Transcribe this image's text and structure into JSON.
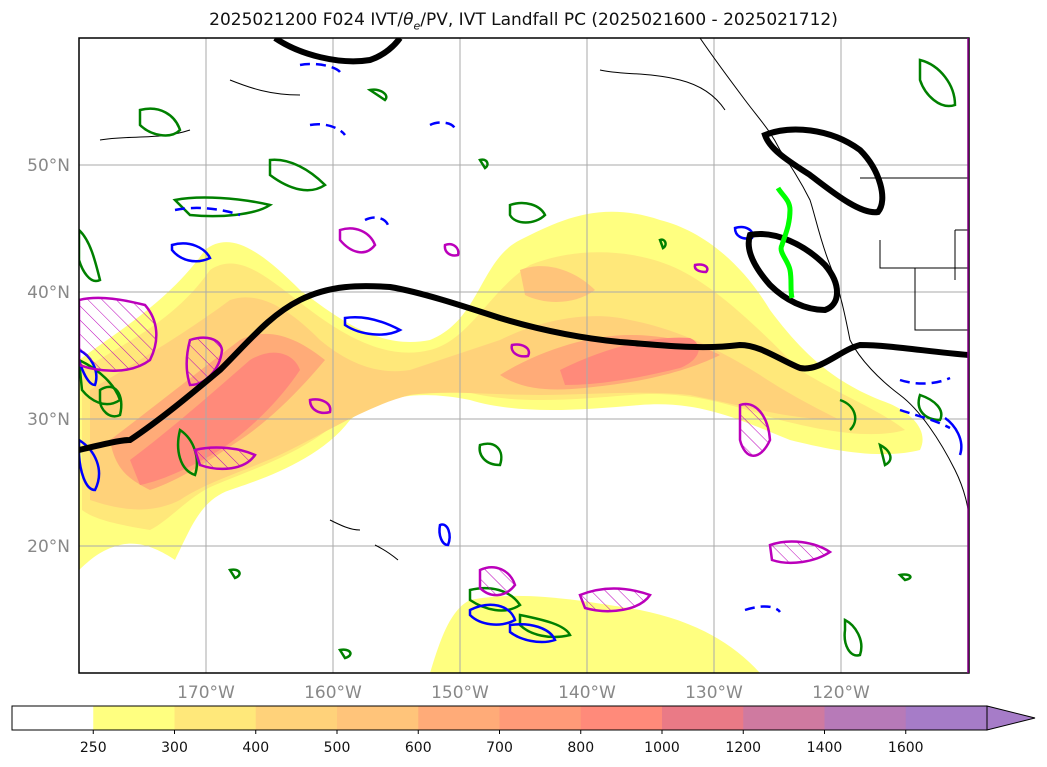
{
  "title_prefix": "2025021200 F024 IVT/",
  "title_theta": "θ",
  "title_sub": "e",
  "title_suffix": "/PV, IVT Landfall PC (2025021600 - 2025021712)",
  "map": {
    "lon_min": -180,
    "lon_max": -110,
    "lat_min": 10,
    "lat_max": 60,
    "lat_labels": [
      {
        "lat": 50,
        "label": "50°N"
      },
      {
        "lat": 40,
        "label": "40°N"
      },
      {
        "lat": 30,
        "label": "30°N"
      },
      {
        "lat": 20,
        "label": "20°N"
      }
    ],
    "lon_labels": [
      {
        "lon": -170,
        "label": "170°W"
      },
      {
        "lon": -160,
        "label": "160°W"
      },
      {
        "lon": -150,
        "label": "150°W"
      },
      {
        "lon": -140,
        "label": "140°W"
      },
      {
        "lon": -130,
        "label": "130°W"
      },
      {
        "lon": -120,
        "label": "120°W"
      }
    ]
  },
  "colorbar": {
    "levels": [
      "250",
      "300",
      "400",
      "500",
      "600",
      "700",
      "800",
      "1000",
      "1200",
      "1400",
      "1600"
    ],
    "colors": [
      "#ffffff",
      "#ffff80",
      "#ffe87a",
      "#ffd27a",
      "#ffc47a",
      "#ffab78",
      "#ff9a78",
      "#ff8a7a",
      "#ea7a86",
      "#cf7aa0",
      "#b77ab8",
      "#a67cc8"
    ],
    "extend": "max"
  },
  "colors": {
    "jet_line": "#000000",
    "landfall_line": "#00ff00",
    "pv_contour": "#008000",
    "theta_contour": "#0000ff",
    "high_pv": "#bb00bb"
  }
}
